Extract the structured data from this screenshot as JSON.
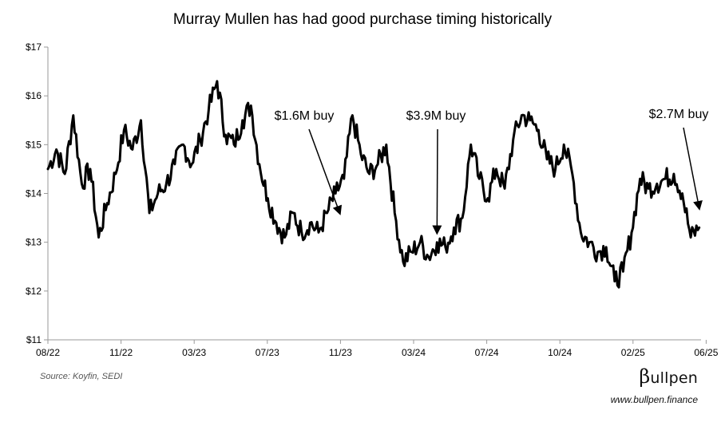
{
  "chart_data": {
    "type": "line",
    "title": "Murray Mullen has had good purchase timing historically",
    "xlabel": "",
    "ylabel": "",
    "ylim": [
      11,
      17
    ],
    "y_ticks": [
      "$11",
      "$12",
      "$13",
      "$14",
      "$15",
      "$16",
      "$17"
    ],
    "x_ticks": [
      "08/22",
      "11/22",
      "03/23",
      "07/23",
      "11/23",
      "03/24",
      "07/24",
      "10/24",
      "02/25",
      "06/25"
    ],
    "grid": false,
    "legend": "none",
    "line_color": "#000000",
    "series": [
      {
        "x": [
          "2022-08-01",
          "2022-08-15",
          "2022-08-29",
          "2022-09-12",
          "2022-09-26",
          "2022-10-10",
          "2022-10-24",
          "2022-11-07",
          "2022-11-21",
          "2022-12-05",
          "2022-12-19",
          "2023-01-02",
          "2023-01-16",
          "2023-01-30",
          "2023-02-13",
          "2023-02-27",
          "2023-03-13",
          "2023-03-27",
          "2023-04-10",
          "2023-04-24",
          "2023-05-08",
          "2023-05-22",
          "2023-06-05",
          "2023-06-19",
          "2023-07-03",
          "2023-07-17",
          "2023-07-31",
          "2023-08-14",
          "2023-08-28",
          "2023-09-11",
          "2023-09-25",
          "2023-10-09",
          "2023-10-23",
          "2023-11-06",
          "2023-11-20",
          "2023-12-04",
          "2023-12-18",
          "2024-01-01",
          "2024-01-15",
          "2024-01-29",
          "2024-02-12",
          "2024-02-26",
          "2024-03-11",
          "2024-03-25",
          "2024-04-08",
          "2024-04-22",
          "2024-05-06",
          "2024-05-20",
          "2024-06-03",
          "2024-06-17",
          "2024-07-01",
          "2024-07-15",
          "2024-07-29",
          "2024-08-12",
          "2024-08-26",
          "2024-09-09",
          "2024-09-23",
          "2024-10-07",
          "2024-10-21",
          "2024-11-04",
          "2024-11-18",
          "2024-12-02",
          "2024-12-16",
          "2024-12-30",
          "2025-01-13",
          "2025-01-27",
          "2025-02-10",
          "2025-02-24",
          "2025-03-10",
          "2025-03-24",
          "2025-04-07",
          "2025-04-21",
          "2025-05-05",
          "2025-05-19",
          "2025-06-02",
          "2025-06-16",
          "2025-06-30",
          "2025-07-14"
        ],
        "values": [
          14.5,
          14.9,
          14.4,
          15.6,
          14.2,
          14.5,
          13.1,
          13.8,
          14.4,
          15.3,
          14.9,
          15.5,
          13.6,
          14.0,
          14.2,
          14.6,
          15.0,
          14.6,
          15.1,
          15.7,
          16.3,
          15.2,
          15.0,
          15.5,
          15.8,
          14.6,
          13.9,
          13.4,
          13.1,
          13.6,
          13.2,
          13.4,
          13.2,
          13.6,
          14.0,
          14.3,
          15.6,
          14.8,
          14.4,
          14.6,
          15.0,
          13.6,
          12.6,
          12.8,
          13.0,
          12.7,
          13.0,
          12.9,
          13.3,
          13.5,
          15.0,
          14.3,
          13.9,
          14.5,
          14.1,
          15.1,
          15.6,
          15.5,
          15.3,
          14.7,
          14.5,
          15.0,
          14.4,
          13.2,
          13.0,
          12.8,
          12.9,
          12.2,
          12.4,
          13.2,
          14.3,
          14.1,
          14.2,
          14.3,
          14.4,
          14.0,
          13.1,
          13.3
        ]
      }
    ],
    "annotations": [
      {
        "text": "$1.6M buy",
        "x": "2023-11-27",
        "y": 13.5
      },
      {
        "text": "$3.9M buy",
        "x": "2024-05-06",
        "y": 13.1
      },
      {
        "text": "$2.7M buy",
        "x": "2025-07-14",
        "y": 13.6
      }
    ]
  },
  "footer": {
    "source": "Source: Koyfin, SEDI",
    "brand_symbol": "β",
    "brand_rest": "ullpen",
    "website": "www.bullpen.finance"
  }
}
